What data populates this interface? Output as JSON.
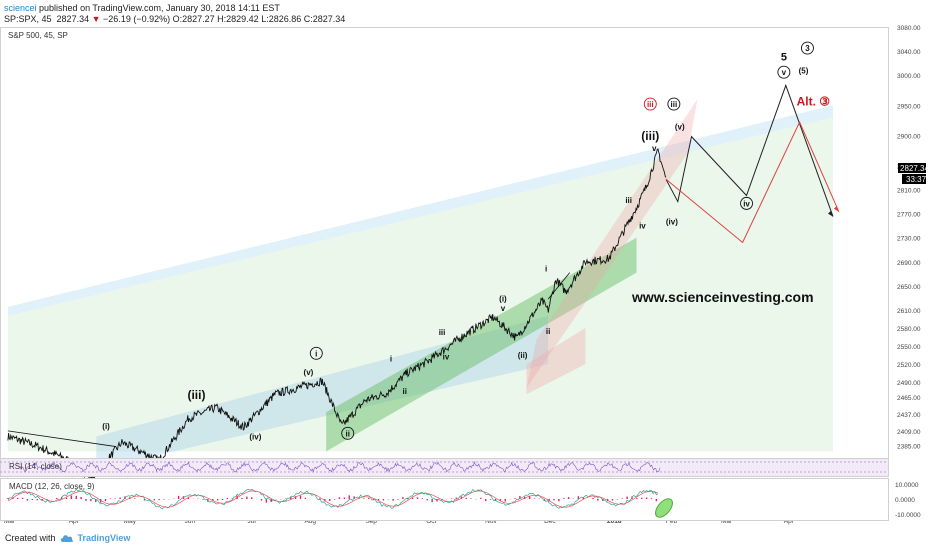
{
  "header": {
    "author": "sciencei",
    "published": "published on TradingView.com, January 30, 2018 14:11 EST",
    "symbol": "SP:SPX, 45",
    "last": "2827.34",
    "change": "−26.19 (−0.92%)",
    "ohlc": "O:2827.27 H:2829.42 L:2826.86 C:2827.34",
    "chart_title": "S&P 500, 45, SP"
  },
  "footer": {
    "created_with": "Created with",
    "brand": "TradingView"
  },
  "watermark": "www.scienceinvesting.com",
  "price_tags": {
    "last": "2827.34",
    "countdown": "33:37"
  },
  "colors": {
    "price": "#111111",
    "projection_main": "#222222",
    "projection_alt": "#e04040",
    "alt_label": "#d0161c",
    "rsi": "#7e57c2",
    "macd": "#26a69a",
    "signal": "#ef5350",
    "hist": "#e91e63"
  },
  "chart_data": [
    {
      "type": "line",
      "title": "S&P 500, 45, SP",
      "x_ticks": [
        "Mar",
        "Apr",
        "May",
        "Jun",
        "Jul",
        "Aug",
        "Sep",
        "Oct",
        "Nov",
        "Dec",
        "2018",
        "Feb",
        "Mar",
        "Apr"
      ],
      "y_ticks": [
        2385,
        2409,
        2437,
        2465,
        2490,
        2520,
        2550,
        2580,
        2610,
        2650,
        2690,
        2730,
        2770,
        2810,
        2850,
        2900,
        2950,
        3000,
        3040,
        3080
      ],
      "ylim": [
        2364,
        3080
      ],
      "series": [
        {
          "values_x": [
            "2017-03-01",
            "2017-03-15",
            "2017-04-01",
            "2017-04-13",
            "2017-04-28",
            "2017-05-17",
            "2017-06-01",
            "2017-06-15",
            "2017-06-29",
            "2017-07-15",
            "2017-08-08",
            "2017-08-18",
            "2017-08-30",
            "2017-09-10",
            "2017-09-20",
            "2017-10-01",
            "2017-10-20",
            "2017-11-03",
            "2017-11-15",
            "2017-11-28",
            "2017-12-01",
            "2017-12-05",
            "2017-12-10",
            "2017-12-20",
            "2018-01-01",
            "2018-01-10",
            "2018-01-15",
            "2018-01-20",
            "2018-01-26",
            "2018-01-30"
          ],
          "values": [
            2400,
            2385,
            2360,
            2330,
            2390,
            2360,
            2430,
            2448,
            2415,
            2470,
            2492,
            2417,
            2460,
            2472,
            2505,
            2525,
            2570,
            2598,
            2563,
            2625,
            2609,
            2660,
            2640,
            2690,
            2695,
            2750,
            2780,
            2815,
            2875,
            2827
          ]
        }
      ],
      "projections": [
        {
          "name": "primary",
          "x": [
            "2018-01-30",
            "2018-02-05",
            "2018-02-12",
            "2018-03-12",
            "2018-04-01",
            "2018-04-25"
          ],
          "values": [
            2827,
            2790,
            2898,
            2800,
            2983,
            2765
          ]
        },
        {
          "name": "alternate",
          "x": [
            "2018-01-30",
            "2018-03-10",
            "2018-04-08",
            "2018-04-28"
          ],
          "values": [
            2827,
            2722,
            2922,
            2773
          ]
        }
      ],
      "wave_labels": [
        {
          "text": "(i)",
          "x": "2017-04-20",
          "y": 2412
        },
        {
          "text": "(iii)",
          "x": "2017-06-05",
          "y": 2462
        },
        {
          "text": "(iv)",
          "x": "2017-07-05",
          "y": 2395
        },
        {
          "text": "(v)",
          "x": "2017-08-01",
          "y": 2502
        },
        {
          "text": "i",
          "x": "2017-08-05",
          "y": 2533,
          "circled": true
        },
        {
          "text": "ii",
          "x": "2017-08-21",
          "y": 2400,
          "circled": true
        },
        {
          "text": "i",
          "x": "2017-09-12",
          "y": 2524
        },
        {
          "text": "ii",
          "x": "2017-09-19",
          "y": 2470
        },
        {
          "text": "iii",
          "x": "2017-10-08",
          "y": 2568
        },
        {
          "text": "iv",
          "x": "2017-10-10",
          "y": 2528
        },
        {
          "text": "(i)",
          "x": "2017-11-08",
          "y": 2624
        },
        {
          "text": "v",
          "x": "2017-11-08",
          "y": 2608
        },
        {
          "text": "(ii)",
          "x": "2017-11-18",
          "y": 2530
        },
        {
          "text": "i",
          "x": "2017-11-30",
          "y": 2674
        },
        {
          "text": "ii",
          "x": "2017-12-01",
          "y": 2570
        },
        {
          "text": "iii",
          "x": "2018-01-11",
          "y": 2788
        },
        {
          "text": "iv",
          "x": "2018-01-18",
          "y": 2745
        },
        {
          "text": "(iii)",
          "x": "2018-01-22",
          "y": 2892
        },
        {
          "text": "v",
          "x": "2018-01-24",
          "y": 2874
        },
        {
          "text": "iii",
          "x": "2018-01-22",
          "y": 2947,
          "circled": true,
          "red": true
        },
        {
          "text": "iii",
          "x": "2018-02-03",
          "y": 2947,
          "circled": true
        },
        {
          "text": "(v)",
          "x": "2018-02-06",
          "y": 2910
        },
        {
          "text": "(iv)",
          "x": "2018-02-02",
          "y": 2752
        },
        {
          "text": "iv",
          "x": "2018-03-12",
          "y": 2782,
          "circled": true
        },
        {
          "text": "5",
          "x": "2018-03-31",
          "y": 3024
        },
        {
          "text": "v",
          "x": "2018-03-31",
          "y": 3000,
          "circled": true
        },
        {
          "text": "(5)",
          "x": "2018-04-10",
          "y": 3003
        },
        {
          "text": "3",
          "x": "2018-04-12",
          "y": 3040,
          "circled": true
        },
        {
          "text": "Alt. ③",
          "x": "2018-04-15",
          "y": 2950,
          "red": true
        }
      ]
    },
    {
      "type": "line",
      "title": "RSI (14, close)",
      "series": [
        {
          "name": "RSI (14, close)",
          "values": []
        }
      ]
    },
    {
      "type": "line",
      "title": "MACD (12, 26, close, 9)",
      "y_ticks": [
        "10.0000",
        "0.0000",
        "-10.0000"
      ],
      "ylim": [
        -14,
        14
      ],
      "series": [
        {
          "name": "MACD",
          "values": []
        },
        {
          "name": "Signal",
          "values": []
        }
      ]
    }
  ]
}
